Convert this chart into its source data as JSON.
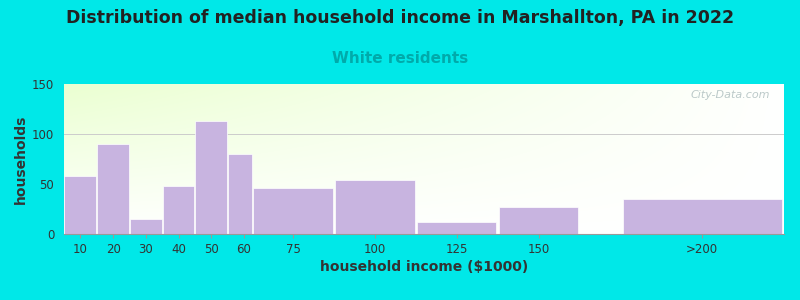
{
  "title": "Distribution of median household income in Marshallton, PA in 2022",
  "subtitle": "White residents",
  "xlabel": "household income ($1000)",
  "ylabel": "households",
  "bar_color": "#c8b4e0",
  "bar_edgecolor": "#ffffff",
  "ylim": [
    0,
    150
  ],
  "yticks": [
    0,
    50,
    100,
    150
  ],
  "background_outer": "#00e8e8",
  "title_fontsize": 12.5,
  "subtitle_fontsize": 11,
  "subtitle_color": "#00aaaa",
  "axis_label_fontsize": 10,
  "watermark": "City-Data.com",
  "bar_left_edges": [
    5,
    15,
    25,
    35,
    45,
    55,
    62.5,
    87.5,
    112.5,
    137.5,
    175
  ],
  "bar_widths": [
    10,
    10,
    10,
    10,
    10,
    7.5,
    25,
    25,
    25,
    25,
    50
  ],
  "bar_heights": [
    58,
    90,
    15,
    48,
    113,
    80,
    46,
    54,
    12,
    27,
    35
  ],
  "xtick_positions": [
    10,
    20,
    30,
    40,
    50,
    60,
    75,
    100,
    125,
    150,
    200
  ],
  "xtick_labels": [
    "10",
    "20",
    "30",
    "40",
    "50",
    "60",
    "75",
    "100",
    "125",
    "150",
    ">200"
  ],
  "xlim": [
    5,
    225
  ]
}
